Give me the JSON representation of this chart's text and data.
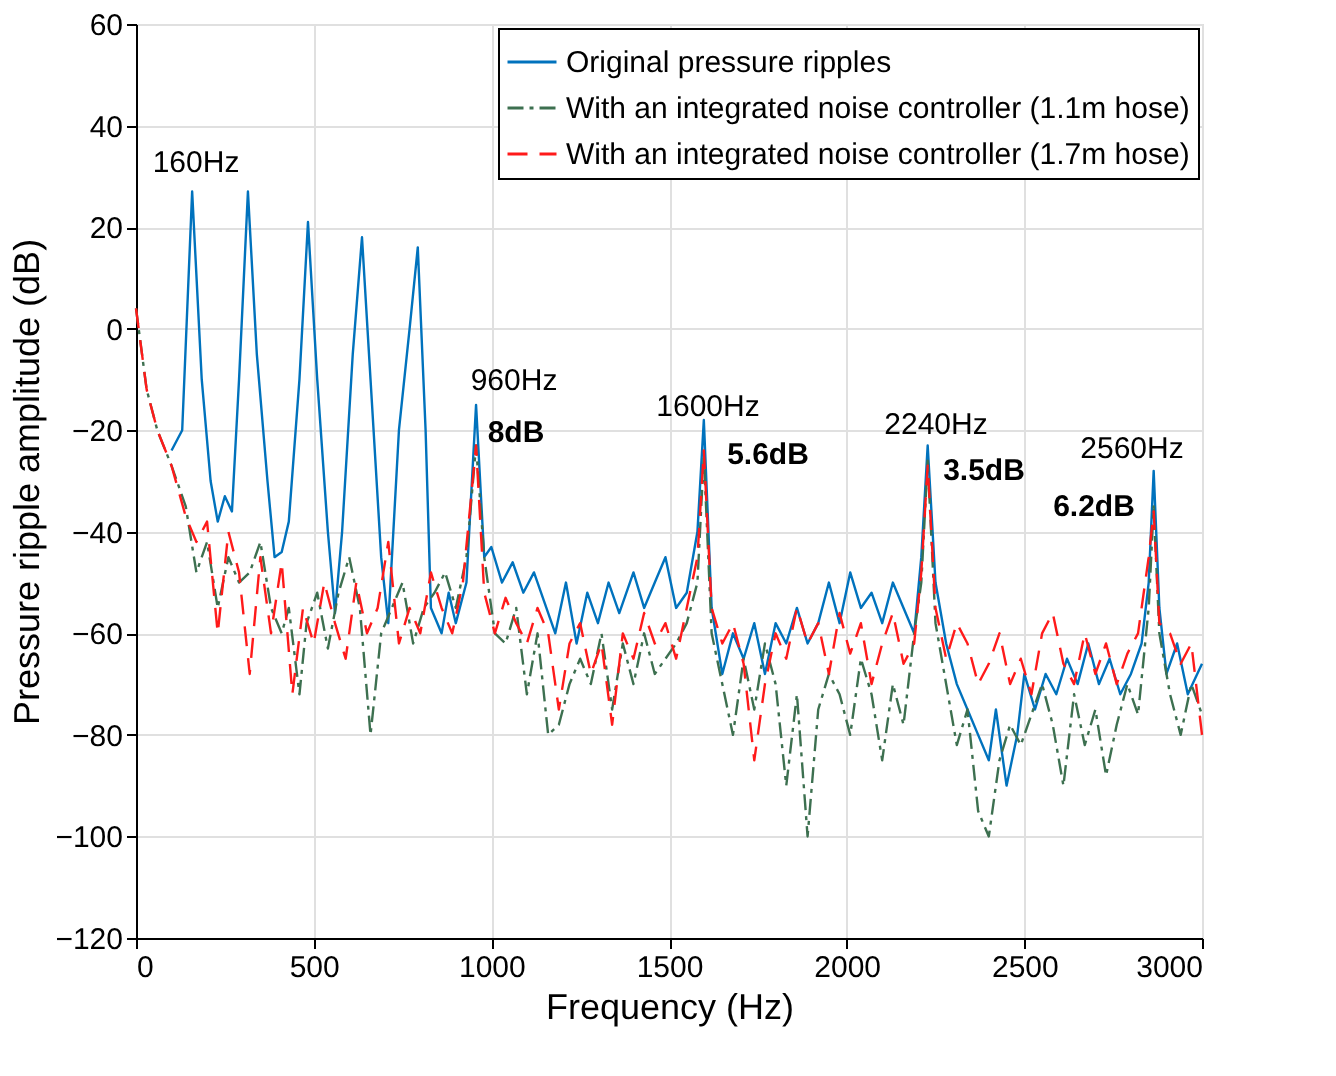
{
  "chart_data": {
    "type": "line",
    "xlabel": "Frequency (Hz)",
    "ylabel": "Pressure ripple amplitude (dB)",
    "xlim": [
      0,
      3000
    ],
    "xticks": [
      0,
      500,
      1000,
      1500,
      2000,
      2500,
      3000
    ],
    "ylim": [
      -120,
      60
    ],
    "yticks": [
      -120,
      -100,
      -80,
      -60,
      -40,
      -20,
      0,
      20,
      40,
      60
    ],
    "grid": true,
    "legend": "top right",
    "marker": "none",
    "series": [
      {
        "name": "Original pressure ripples",
        "color": "#0072bd",
        "line_style": "solid",
        "x": [
          100,
          130,
          158,
          185,
          210,
          230,
          250,
          270,
          290,
          315,
          340,
          370,
          390,
          410,
          430,
          460,
          484,
          510,
          540,
          560,
          580,
          610,
          636,
          660,
          690,
          710,
          740,
          770,
          793,
          815,
          830,
          860,
          880,
          900,
          930,
          957,
          980,
          1000,
          1030,
          1060,
          1090,
          1120,
          1150,
          1180,
          1210,
          1240,
          1270,
          1300,
          1330,
          1360,
          1400,
          1430,
          1460,
          1490,
          1520,
          1550,
          1580,
          1598,
          1620,
          1650,
          1680,
          1710,
          1740,
          1770,
          1800,
          1830,
          1860,
          1890,
          1920,
          1950,
          1980,
          2010,
          2040,
          2070,
          2100,
          2130,
          2160,
          2190,
          2210,
          2228,
          2250,
          2280,
          2310,
          2340,
          2370,
          2400,
          2420,
          2450,
          2480,
          2500,
          2530,
          2560,
          2590,
          2620,
          2650,
          2680,
          2710,
          2740,
          2770,
          2800,
          2830,
          2850,
          2864,
          2880,
          2900,
          2930,
          2960,
          3000
        ],
        "values": [
          -24,
          -20,
          27,
          -10,
          -30,
          -38,
          -33,
          -36,
          -10,
          27,
          -5,
          -30,
          -45,
          -44,
          -38,
          -10,
          21,
          -10,
          -40,
          -56,
          -40,
          -5,
          18,
          -10,
          -45,
          -58,
          -20,
          0,
          16,
          -20,
          -55,
          -60,
          -52,
          -58,
          -50,
          -15,
          -45,
          -43,
          -50,
          -46,
          -52,
          -48,
          -54,
          -60,
          -50,
          -62,
          -52,
          -58,
          -50,
          -56,
          -48,
          -55,
          -50,
          -45,
          -55,
          -52,
          -40,
          -18,
          -55,
          -68,
          -60,
          -65,
          -58,
          -68,
          -58,
          -62,
          -55,
          -62,
          -58,
          -50,
          -58,
          -48,
          -55,
          -52,
          -58,
          -50,
          -55,
          -60,
          -45,
          -23,
          -50,
          -62,
          -70,
          -75,
          -80,
          -85,
          -75,
          -90,
          -80,
          -68,
          -75,
          -68,
          -72,
          -65,
          -70,
          -62,
          -70,
          -65,
          -72,
          -68,
          -62,
          -50,
          -28,
          -55,
          -68,
          -62,
          -72,
          -66
        ]
      },
      {
        "name": "With an integrated noise controller (1.1m hose)",
        "color": "#3d7050",
        "line_style": "dashdot",
        "x": [
          0,
          30,
          60,
          100,
          140,
          170,
          200,
          230,
          260,
          290,
          320,
          350,
          380,
          410,
          430,
          460,
          480,
          510,
          540,
          570,
          600,
          630,
          660,
          690,
          720,
          750,
          780,
          810,
          840,
          870,
          900,
          930,
          957,
          980,
          1010,
          1040,
          1070,
          1100,
          1130,
          1160,
          1190,
          1220,
          1250,
          1280,
          1310,
          1340,
          1370,
          1400,
          1430,
          1460,
          1490,
          1520,
          1550,
          1580,
          1598,
          1620,
          1650,
          1680,
          1710,
          1740,
          1770,
          1800,
          1830,
          1860,
          1890,
          1920,
          1950,
          1980,
          2010,
          2040,
          2070,
          2100,
          2130,
          2160,
          2190,
          2210,
          2228,
          2250,
          2280,
          2310,
          2340,
          2370,
          2400,
          2430,
          2460,
          2490,
          2520,
          2550,
          2580,
          2610,
          2640,
          2670,
          2700,
          2730,
          2760,
          2790,
          2820,
          2850,
          2864,
          2880,
          2910,
          2940,
          2970,
          3000
        ],
        "values": [
          4,
          -12,
          -20,
          -27,
          -35,
          -48,
          -42,
          -55,
          -45,
          -50,
          -48,
          -42,
          -55,
          -60,
          -55,
          -72,
          -58,
          -52,
          -63,
          -52,
          -45,
          -55,
          -80,
          -60,
          -55,
          -50,
          -62,
          -55,
          -52,
          -48,
          -55,
          -45,
          -23,
          -45,
          -60,
          -62,
          -55,
          -72,
          -60,
          -80,
          -78,
          -70,
          -65,
          -70,
          -60,
          -75,
          -62,
          -70,
          -60,
          -68,
          -65,
          -62,
          -58,
          -50,
          -25,
          -60,
          -70,
          -80,
          -65,
          -75,
          -62,
          -70,
          -90,
          -72,
          -100,
          -75,
          -68,
          -72,
          -80,
          -65,
          -72,
          -85,
          -70,
          -78,
          -60,
          -50,
          -26,
          -58,
          -70,
          -82,
          -75,
          -95,
          -100,
          -85,
          -78,
          -82,
          -76,
          -70,
          -78,
          -90,
          -72,
          -82,
          -75,
          -88,
          -78,
          -70,
          -76,
          -55,
          -35,
          -60,
          -72,
          -80,
          -70,
          -76
        ]
      },
      {
        "name": "With an integrated noise controller (1.7m hose)",
        "color": "#ff1a1a",
        "line_style": "dashed",
        "x": [
          0,
          30,
          60,
          100,
          140,
          170,
          200,
          230,
          260,
          290,
          320,
          350,
          380,
          410,
          440,
          470,
          500,
          530,
          560,
          590,
          620,
          650,
          680,
          710,
          740,
          770,
          800,
          830,
          860,
          890,
          920,
          957,
          980,
          1010,
          1040,
          1070,
          1100,
          1130,
          1160,
          1190,
          1220,
          1250,
          1280,
          1310,
          1340,
          1370,
          1400,
          1430,
          1460,
          1490,
          1520,
          1550,
          1580,
          1598,
          1620,
          1650,
          1680,
          1710,
          1740,
          1770,
          1800,
          1830,
          1860,
          1890,
          1920,
          1950,
          1980,
          2010,
          2040,
          2070,
          2100,
          2130,
          2160,
          2190,
          2210,
          2228,
          2250,
          2280,
          2310,
          2340,
          2370,
          2400,
          2430,
          2460,
          2490,
          2520,
          2550,
          2580,
          2610,
          2640,
          2670,
          2700,
          2730,
          2760,
          2790,
          2820,
          2850,
          2864,
          2880,
          2910,
          2940,
          2970,
          3000
        ],
        "values": [
          4,
          -12,
          -20,
          -27,
          -37,
          -42,
          -38,
          -60,
          -40,
          -48,
          -68,
          -45,
          -60,
          -46,
          -72,
          -55,
          -62,
          -50,
          -58,
          -65,
          -50,
          -60,
          -55,
          -42,
          -62,
          -55,
          -60,
          -48,
          -55,
          -60,
          -50,
          -23,
          -52,
          -60,
          -53,
          -58,
          -62,
          -55,
          -60,
          -75,
          -62,
          -58,
          -68,
          -62,
          -78,
          -60,
          -65,
          -56,
          -62,
          -58,
          -65,
          -55,
          -45,
          -24,
          -55,
          -62,
          -58,
          -66,
          -85,
          -70,
          -60,
          -65,
          -55,
          -62,
          -58,
          -68,
          -56,
          -64,
          -58,
          -70,
          -62,
          -56,
          -66,
          -62,
          -48,
          -27,
          -55,
          -65,
          -58,
          -62,
          -70,
          -66,
          -60,
          -70,
          -65,
          -72,
          -60,
          -56,
          -66,
          -70,
          -60,
          -68,
          -62,
          -70,
          -64,
          -60,
          -45,
          -36,
          -58,
          -60,
          -66,
          -62,
          -80
        ]
      }
    ],
    "annotations": [
      "160Hz",
      "960Hz",
      "8dB",
      "1600Hz",
      "5.6dB",
      "2240Hz",
      "3.5dB",
      "2560Hz",
      "6.2dB"
    ]
  }
}
